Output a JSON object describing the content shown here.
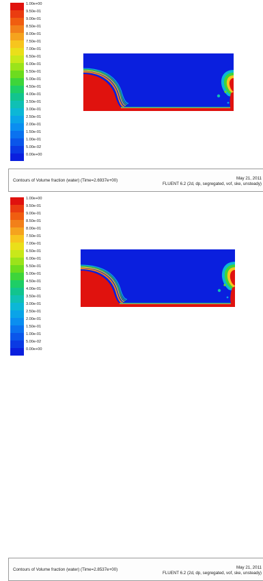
{
  "colors": {
    "scale": [
      "#e0120e",
      "#ea3c10",
      "#f05d10",
      "#f2801a",
      "#f5a31e",
      "#f7c51e",
      "#eadf1a",
      "#c8e81a",
      "#9be31a",
      "#6ddc1e",
      "#3ed53a",
      "#1ece66",
      "#12c48e",
      "#10c0b4",
      "#0cb7d6",
      "#0aa4e8",
      "#0a8ef0",
      "#0a72ef",
      "#0a56ea",
      "#0a3ae4",
      "#0a1fde"
    ],
    "water": "#e0120e",
    "air": "#0a1fde"
  },
  "panels": [
    {
      "legend": [
        "1.00e+00",
        "9.50e-01",
        "9.00e-01",
        "8.50e-01",
        "8.00e-01",
        "7.50e-01",
        "7.00e-01",
        "6.50e-01",
        "6.00e-01",
        "5.50e-01",
        "5.00e-01",
        "4.50e-01",
        "4.00e-01",
        "3.50e-01",
        "3.00e-01",
        "2.50e-01",
        "2.00e-01",
        "1.50e-01",
        "1.00e-01",
        "5.00e-02",
        "0.00e+00"
      ],
      "caption": {
        "title": "Contours of Volume fraction (water)  (Time=2.6937e+00)",
        "date": "May 21, 2011",
        "solver": "FLUENT 6.2 (2d, dp, segregated, vof, ske, unsteady)"
      }
    },
    {
      "legend": [
        "1.00e+00",
        "9.50e-01",
        "9.00e-01",
        "8.50e-01",
        "8.00e-01",
        "7.50e-01",
        "7.00e-01",
        "6.50e-01",
        "6.00e-01",
        "5.50e-01",
        "5.00e-01",
        "4.50e-01",
        "4.00e-01",
        "3.50e-01",
        "3.00e-01",
        "2.50e-01",
        "2.00e-01",
        "1.50e-01",
        "1.00e-01",
        "5.00e-02",
        "0.00e+00"
      ],
      "caption": {
        "title": "Contours of Volume fraction (water)  (Time=2.8537e+00)",
        "date": "May 21, 2011",
        "solver": "FLUENT 6.2 (2d, dp, segregated, vof, ske, unsteady)"
      }
    }
  ]
}
